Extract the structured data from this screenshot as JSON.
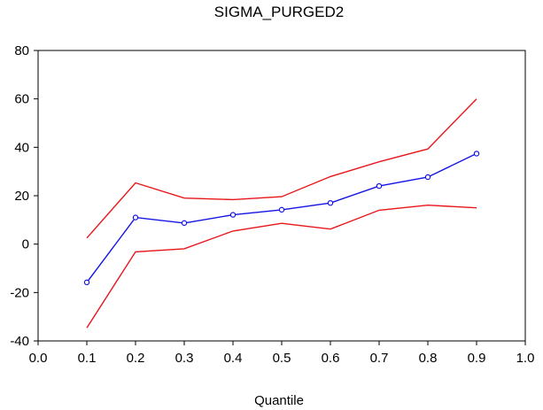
{
  "chart_data": {
    "type": "line",
    "title": "SIGMA_PURGED2",
    "xlabel": "Quantile",
    "ylabel": "",
    "xlim": [
      0.0,
      1.0
    ],
    "ylim": [
      -40,
      80
    ],
    "x_ticks": [
      0.0,
      0.1,
      0.2,
      0.3,
      0.4,
      0.5,
      0.6,
      0.7,
      0.8,
      0.9,
      1.0
    ],
    "x_tick_labels": [
      "0.0",
      "0.1",
      "0.2",
      "0.3",
      "0.4",
      "0.5",
      "0.6",
      "0.7",
      "0.8",
      "0.9",
      "1.0"
    ],
    "y_ticks": [
      -40,
      -20,
      0,
      20,
      40,
      60,
      80
    ],
    "y_tick_labels": [
      "-40",
      "-20",
      "0",
      "20",
      "40",
      "60",
      "80"
    ],
    "grid": false,
    "legend": "none",
    "x": [
      0.1,
      0.2,
      0.3,
      0.4,
      0.5,
      0.6,
      0.7,
      0.8,
      0.9
    ],
    "series": [
      {
        "role": "upper-bound",
        "color": "#e8161b",
        "markers": false,
        "values": [
          2.5,
          25.3,
          19.0,
          18.4,
          19.6,
          27.9,
          34.0,
          39.3,
          60.0
        ]
      },
      {
        "role": "estimate",
        "color": "#1414e6",
        "markers": true,
        "values": [
          -15.8,
          11.0,
          8.7,
          12.1,
          14.2,
          17.0,
          24.0,
          27.7,
          37.4
        ]
      },
      {
        "role": "lower-bound",
        "color": "#e8161b",
        "markers": false,
        "values": [
          -34.6,
          -3.2,
          -1.9,
          5.4,
          8.6,
          6.2,
          14.0,
          16.1,
          15.0
        ]
      }
    ]
  }
}
